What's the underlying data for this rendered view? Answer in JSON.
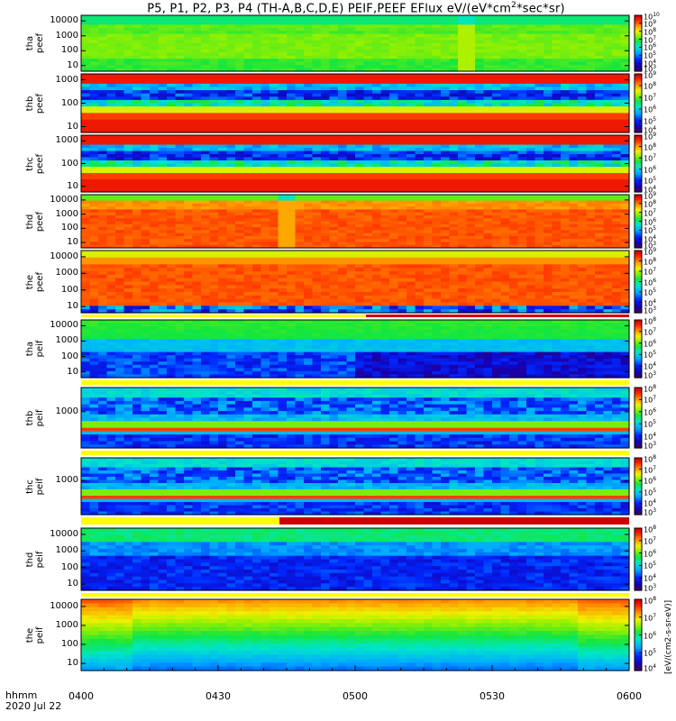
{
  "figure": {
    "title_main": "P5, P1, P2, P3, P4 (TH-A,B,C,D,E) PEIF,PEEF EFlux eV/(eV*cm",
    "title_sup": "2",
    "title_tail": "*sec*sr)",
    "colorbar_label": "[eV/(cm2-s-sr-eV)]",
    "time_axis_label": "hhmm",
    "date_label": "2020 Jul 22"
  },
  "chart_data": {
    "type": "heatmap",
    "x": {
      "ticks": [
        "0400",
        "0430",
        "0500",
        "0530",
        "0600"
      ],
      "range_hhmm": [
        "0400",
        "0600"
      ]
    },
    "colormap": "rainbow (purple-blue-cyan-green-yellow-orange-red)",
    "panels": [
      {
        "id": "tha_peef",
        "label_top": "tha",
        "label_bottom": "peef",
        "y_ticks": [
          "10000",
          "1000",
          "100",
          "10"
        ],
        "cb_exponents": [
          "10",
          "9",
          "8",
          "7",
          "6",
          "5",
          "4",
          "3"
        ],
        "cb_min_exp": 3,
        "cb_max_exp": 10,
        "base_level": 0.52
      },
      {
        "id": "thb_peef",
        "label_top": "thb",
        "label_bottom": "peef",
        "y_ticks": [
          "1000",
          "100",
          "10"
        ],
        "cb_exponents": [
          "9",
          "8",
          "7",
          "6",
          "5",
          "4"
        ],
        "cb_min_exp": 4,
        "cb_max_exp": 9,
        "base_level": 0.6
      },
      {
        "id": "thc_peef",
        "label_top": "thc",
        "label_bottom": "peef",
        "y_ticks": [
          "1000",
          "100",
          "10"
        ],
        "cb_exponents": [
          "9",
          "8",
          "7",
          "6",
          "5",
          "4"
        ],
        "cb_min_exp": 4,
        "cb_max_exp": 9,
        "base_level": 0.62
      },
      {
        "id": "thd_peef",
        "label_top": "thd",
        "label_bottom": "peef",
        "y_ticks": [
          "10000",
          "1000",
          "100",
          "10"
        ],
        "cb_exponents": [
          "9",
          "8",
          "7",
          "6",
          "5",
          "4",
          "3"
        ],
        "cb_min_exp": 3,
        "cb_max_exp": 9,
        "base_level": 0.8
      },
      {
        "id": "the_peef",
        "label_top": "the",
        "label_bottom": "peef",
        "y_ticks": [
          "10000",
          "1000",
          "100",
          "10"
        ],
        "cb_exponents": [
          "9",
          "8",
          "7",
          "6",
          "5",
          "4",
          "3"
        ],
        "cb_min_exp": 3,
        "cb_max_exp": 9,
        "base_level": 0.78
      },
      {
        "id": "tha_peif",
        "label_top": "tha",
        "label_bottom": "peif",
        "y_ticks": [
          "10000",
          "1000",
          "100",
          "10"
        ],
        "cb_exponents": [
          "8",
          "7",
          "6",
          "5",
          "4",
          "3"
        ],
        "cb_min_exp": 3,
        "cb_max_exp": 8,
        "base_level": 0.35
      },
      {
        "id": "thb_peif",
        "label_top": "thb",
        "label_bottom": "peif",
        "y_ticks": [
          "1000"
        ],
        "cb_exponents": [
          "8",
          "7",
          "6",
          "5",
          "4",
          "3"
        ],
        "cb_min_exp": 3,
        "cb_max_exp": 8,
        "base_level": 0.4
      },
      {
        "id": "thc_peif",
        "label_top": "thc",
        "label_bottom": "peif",
        "y_ticks": [
          "1000"
        ],
        "cb_exponents": [
          "8",
          "7",
          "6",
          "5",
          "4",
          "3"
        ],
        "cb_min_exp": 3,
        "cb_max_exp": 8,
        "base_level": 0.35
      },
      {
        "id": "thd_peif",
        "label_top": "thd",
        "label_bottom": "peif",
        "y_ticks": [
          "10000",
          "1000",
          "100",
          "10"
        ],
        "cb_exponents": [
          "8",
          "7",
          "6",
          "5",
          "4",
          "3"
        ],
        "cb_min_exp": 3,
        "cb_max_exp": 8,
        "base_level": 0.3
      },
      {
        "id": "the_peif",
        "label_top": "the",
        "label_bottom": "peif",
        "y_ticks": [
          "10000",
          "1000",
          "100",
          "10"
        ],
        "cb_exponents": [
          "8",
          "7",
          "6",
          "5",
          "4"
        ],
        "cb_min_exp": 4,
        "cb_max_exp": 8,
        "base_level": 0.42
      }
    ]
  }
}
